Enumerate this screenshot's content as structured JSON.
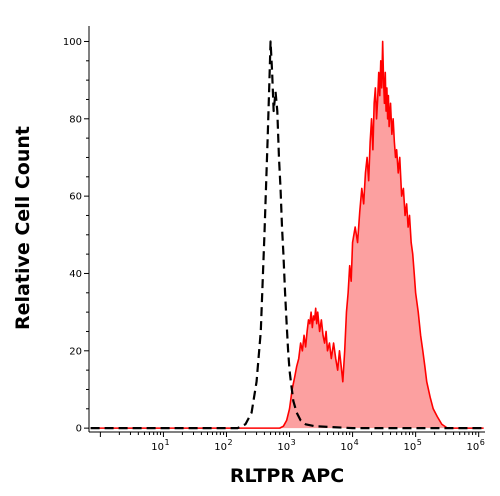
{
  "chart_data": {
    "type": "area",
    "title": "",
    "xlabel": "RLTPR APC",
    "ylabel": "Relative Cell Count",
    "x_scale": "log",
    "xlim": [
      0.66,
      1260000
    ],
    "ylim": [
      -1,
      104
    ],
    "grid": false,
    "legend": "none",
    "x_ticks": [
      {
        "base": "10",
        "exp": "1",
        "value": 10
      },
      {
        "base": "10",
        "exp": "2",
        "value": 100
      },
      {
        "base": "10",
        "exp": "3",
        "value": 1000
      },
      {
        "base": "10",
        "exp": "4",
        "value": 10000
      },
      {
        "base": "10",
        "exp": "5",
        "value": 100000
      },
      {
        "base": "10",
        "exp": "6",
        "value": 1000000
      }
    ],
    "y_ticks": [
      "0",
      "20",
      "40",
      "60",
      "80",
      "100"
    ],
    "series": [
      {
        "style": "dashed",
        "color": "#000000",
        "x": [
          0.7,
          150,
          200,
          250,
          300,
          350,
          400,
          450,
          480,
          500,
          530,
          560,
          600,
          640,
          680,
          720,
          760,
          800,
          850,
          900,
          950,
          1000,
          1050,
          1150,
          1300,
          1500,
          1800,
          2500,
          10000,
          1200000
        ],
        "y": [
          0,
          0,
          1,
          4,
          12,
          25,
          50,
          75,
          90,
          100,
          92,
          82,
          87,
          82,
          70,
          62,
          52,
          45,
          35,
          27,
          20,
          15,
          12,
          7,
          4,
          2,
          1,
          0.5,
          0,
          0
        ]
      },
      {
        "style": "filled",
        "color": "#ff0000",
        "fill": "#fca0a0",
        "x": [
          0.7,
          700,
          800,
          900,
          1000,
          1100,
          1200,
          1300,
          1400,
          1500,
          1600,
          1700,
          1800,
          1900,
          2000,
          2100,
          2200,
          2300,
          2400,
          2500,
          2600,
          2700,
          2800,
          3000,
          3200,
          3400,
          3600,
          3800,
          4000,
          4300,
          4600,
          5000,
          5400,
          5800,
          6200,
          6600,
          7000,
          7500,
          8000,
          8500,
          9000,
          9500,
          10000,
          11000,
          12000,
          13000,
          14000,
          15000,
          16000,
          17000,
          18000,
          19000,
          20000,
          21000,
          22000,
          23000,
          24000,
          25000,
          26000,
          27000,
          28000,
          29000,
          30000,
          31000,
          32000,
          33000,
          34000,
          35000,
          36000,
          37000,
          38000,
          40000,
          42000,
          44000,
          46000,
          48000,
          50000,
          53000,
          56000,
          60000,
          64000,
          68000,
          72000,
          76000,
          80000,
          85000,
          90000,
          95000,
          100000,
          110000,
          120000,
          130000,
          140000,
          150000,
          170000,
          190000,
          220000,
          260000,
          320000,
          1200000
        ],
        "y": [
          0,
          0,
          0.5,
          2,
          5,
          10,
          13,
          16,
          18,
          22,
          20,
          24,
          21,
          25,
          28,
          27,
          30,
          26,
          29,
          28,
          31,
          27,
          30,
          25,
          28,
          24,
          22,
          25,
          20,
          22,
          18,
          22,
          18,
          15,
          20,
          16,
          12,
          20,
          30,
          35,
          42,
          38,
          48,
          52,
          48,
          56,
          62,
          58,
          66,
          70,
          64,
          74,
          80,
          72,
          84,
          88,
          80,
          85,
          92,
          86,
          95,
          88,
          100,
          90,
          84,
          92,
          82,
          88,
          80,
          86,
          78,
          84,
          76,
          80,
          74,
          70,
          72,
          66,
          70,
          60,
          62,
          55,
          58,
          52,
          55,
          48,
          45,
          40,
          35,
          30,
          24,
          20,
          16,
          12,
          8,
          5,
          3,
          1,
          0,
          0
        ]
      }
    ]
  }
}
